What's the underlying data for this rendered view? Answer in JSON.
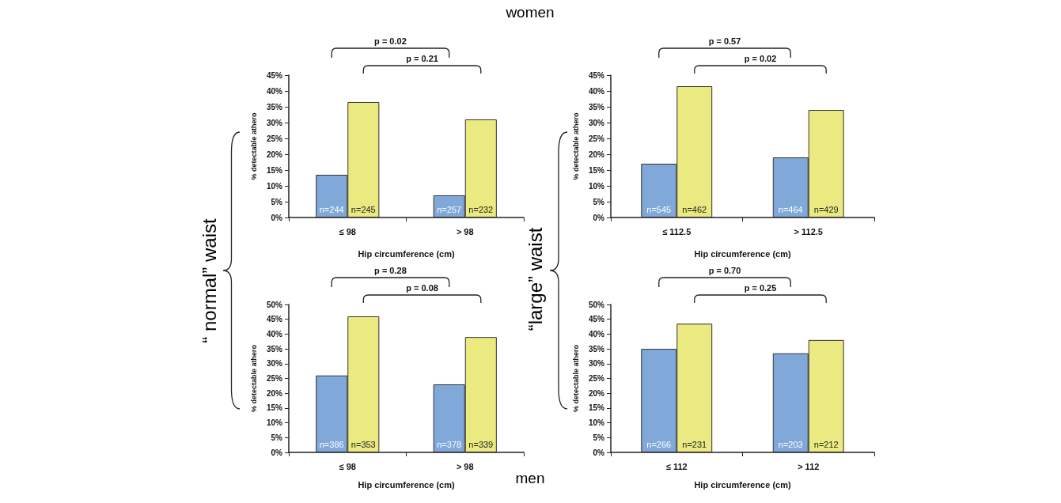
{
  "chart_data": [
    {
      "type": "bar",
      "categories": [
        "≤ 98",
        "> 98"
      ],
      "xlabel": "Hip circumference (cm)",
      "ylabel": "% detectable athero",
      "ylim": [
        0,
        45
      ],
      "yticks": [
        {
          "value": 0,
          "label": "0%"
        },
        {
          "value": 5,
          "label": "5%"
        },
        {
          "value": 10,
          "label": "10%"
        },
        {
          "value": 15,
          "label": "15%"
        },
        {
          "value": 20,
          "label": "20%"
        },
        {
          "value": 25,
          "label": "25%"
        },
        {
          "value": 30,
          "label": "30%"
        },
        {
          "value": 35,
          "label": "35%"
        },
        {
          "value": 40,
          "label": "40%"
        },
        {
          "value": 45,
          "label": "45%"
        }
      ],
      "grid": false,
      "series": [
        {
          "color": "#80a8d8",
          "values": [
            13.5,
            7
          ]
        },
        {
          "color": "#eaea80",
          "values": [
            36.5,
            31
          ]
        }
      ],
      "annotations": [
        "women",
        "“ normal” waist",
        {
          "text": "n=244",
          "x": "≤ 98",
          "y": 0
        },
        {
          "text": "n=245",
          "x": "≤ 98",
          "y": 0
        },
        {
          "text": "n=257",
          "x": "> 98",
          "y": 0
        },
        {
          "text": "n=232",
          "x": "> 98",
          "y": 0
        },
        "p = 0.02",
        "p = 0.21"
      ]
    },
    {
      "type": "bar",
      "categories": [
        "≤ 112.5",
        "> 112.5"
      ],
      "xlabel": "Hip circumference (cm)",
      "ylabel": "% detectable athero",
      "ylim": [
        0,
        45
      ],
      "yticks": [
        {
          "value": 0,
          "label": "0%"
        },
        {
          "value": 5,
          "label": "5%"
        },
        {
          "value": 10,
          "label": "10%"
        },
        {
          "value": 15,
          "label": "15%"
        },
        {
          "value": 20,
          "label": "20%"
        },
        {
          "value": 25,
          "label": "25%"
        },
        {
          "value": 30,
          "label": "30%"
        },
        {
          "value": 35,
          "label": "35%"
        },
        {
          "value": 40,
          "label": "40%"
        },
        {
          "value": 45,
          "label": "45%"
        }
      ],
      "grid": false,
      "series": [
        {
          "color": "#80a8d8",
          "values": [
            17,
            19
          ]
        },
        {
          "color": "#eaea80",
          "values": [
            41.5,
            34
          ]
        }
      ],
      "annotations": [
        "“large” waist",
        {
          "text": "n=545",
          "x": "≤ 112.5",
          "y": 0
        },
        {
          "text": "n=462",
          "x": "≤ 112.5",
          "y": 0
        },
        {
          "text": "n=464",
          "x": "> 112.5",
          "y": 0
        },
        {
          "text": "n=429",
          "x": "> 112.5",
          "y": 0
        },
        "p = 0.57",
        "p = 0.02"
      ]
    },
    {
      "type": "bar",
      "categories": [
        "≤ 98",
        "> 98"
      ],
      "xlabel": "Hip circumference (cm)",
      "ylabel": "% detectable athero",
      "ylim": [
        0,
        50
      ],
      "yticks": [
        {
          "value": 0,
          "label": "0%"
        },
        {
          "value": 5,
          "label": "5%"
        },
        {
          "value": 10,
          "label": "10%"
        },
        {
          "value": 15,
          "label": "15%"
        },
        {
          "value": 20,
          "label": "20%"
        },
        {
          "value": 25,
          "label": "25%"
        },
        {
          "value": 30,
          "label": "30%"
        },
        {
          "value": 35,
          "label": "35%"
        },
        {
          "value": 40,
          "label": "40%"
        },
        {
          "value": 45,
          "label": "45%"
        },
        {
          "value": 50,
          "label": "50%"
        }
      ],
      "grid": false,
      "series": [
        {
          "color": "#80a8d8",
          "values": [
            26,
            23
          ]
        },
        {
          "color": "#eaea80",
          "values": [
            46,
            39
          ]
        }
      ],
      "annotations": [
        "men",
        {
          "text": "n=386",
          "x": "≤ 98",
          "y": 0
        },
        {
          "text": "n=353",
          "x": "≤ 98",
          "y": 0
        },
        {
          "text": "n=378",
          "x": "> 98",
          "y": 0
        },
        {
          "text": "n=339",
          "x": "> 98",
          "y": 0
        },
        "p = 0.28",
        "p = 0.08"
      ]
    },
    {
      "type": "bar",
      "categories": [
        "≤ 112",
        "> 112"
      ],
      "xlabel": "Hip circumference (cm)",
      "ylabel": "% detectable athero",
      "ylim": [
        0,
        50
      ],
      "yticks": [
        {
          "value": 0,
          "label": "0%"
        },
        {
          "value": 5,
          "label": "5%"
        },
        {
          "value": 10,
          "label": "10%"
        },
        {
          "value": 15,
          "label": "15%"
        },
        {
          "value": 20,
          "label": "20%"
        },
        {
          "value": 25,
          "label": "25%"
        },
        {
          "value": 30,
          "label": "30%"
        },
        {
          "value": 35,
          "label": "35%"
        },
        {
          "value": 40,
          "label": "40%"
        },
        {
          "value": 45,
          "label": "45%"
        },
        {
          "value": 50,
          "label": "50%"
        }
      ],
      "grid": false,
      "series": [
        {
          "color": "#80a8d8",
          "values": [
            35,
            33.5
          ]
        },
        {
          "color": "#eaea80",
          "values": [
            43.5,
            38
          ]
        }
      ],
      "annotations": [
        {
          "text": "n=266",
          "x": "≤ 112",
          "y": 0
        },
        {
          "text": "n=231",
          "x": "≤ 112",
          "y": 0
        },
        {
          "text": "n=203",
          "x": "> 112",
          "y": 0
        },
        {
          "text": "n=212",
          "x": "> 112",
          "y": 0
        },
        "p = 0.70",
        "p = 0.25"
      ]
    }
  ]
}
